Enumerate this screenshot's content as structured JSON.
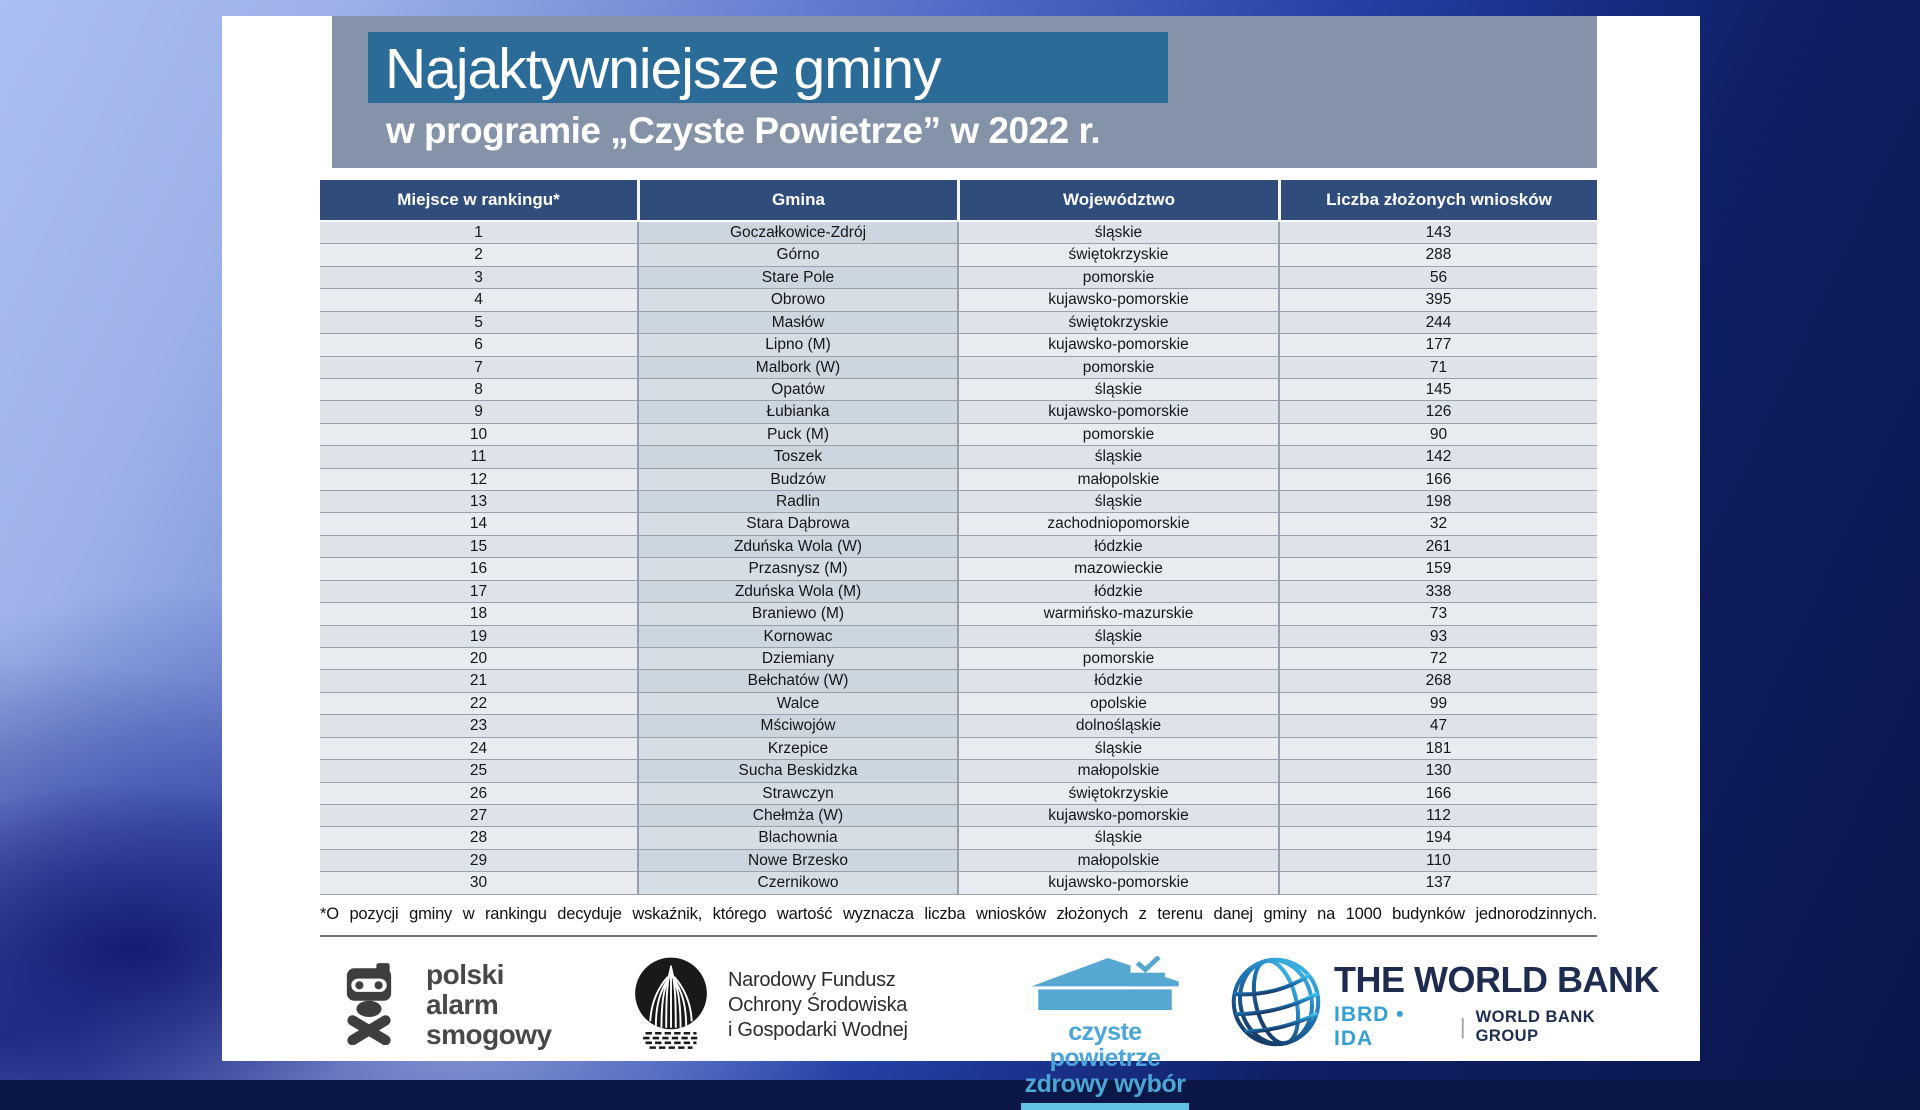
{
  "title": {
    "main": "Najaktywniejsze gminy",
    "subtitle": "w programie „Czyste Powietrze” w 2022 r."
  },
  "table": {
    "columns": [
      "Miejsce w rankingu*",
      "Gmina",
      "Województwo",
      "Liczba złożonych wniosków"
    ],
    "rows": [
      [
        "1",
        "Goczałkowice-Zdrój",
        "śląskie",
        "143"
      ],
      [
        "2",
        "Górno",
        "świętokrzyskie",
        "288"
      ],
      [
        "3",
        "Stare Pole",
        "pomorskie",
        "56"
      ],
      [
        "4",
        "Obrowo",
        "kujawsko-pomorskie",
        "395"
      ],
      [
        "5",
        "Masłów",
        "świętokrzyskie",
        "244"
      ],
      [
        "6",
        "Lipno (M)",
        "kujawsko-pomorskie",
        "177"
      ],
      [
        "7",
        "Malbork (W)",
        "pomorskie",
        "71"
      ],
      [
        "8",
        "Opatów",
        "śląskie",
        "145"
      ],
      [
        "9",
        "Łubianka",
        "kujawsko-pomorskie",
        "126"
      ],
      [
        "10",
        "Puck (M)",
        "pomorskie",
        "90"
      ],
      [
        "11",
        "Toszek",
        "śląskie",
        "142"
      ],
      [
        "12",
        "Budzów",
        "małopolskie",
        "166"
      ],
      [
        "13",
        "Radlin",
        "śląskie",
        "198"
      ],
      [
        "14",
        "Stara Dąbrowa",
        "zachodniopomorskie",
        "32"
      ],
      [
        "15",
        "Zduńska Wola (W)",
        "łódzkie",
        "261"
      ],
      [
        "16",
        "Przasnysz (M)",
        "mazowieckie",
        "159"
      ],
      [
        "17",
        "Zduńska Wola (M)",
        "łódzkie",
        "338"
      ],
      [
        "18",
        "Braniewo (M)",
        "warmińsko-mazurskie",
        "73"
      ],
      [
        "19",
        "Kornowac",
        "śląskie",
        "93"
      ],
      [
        "20",
        "Dziemiany",
        "pomorskie",
        "72"
      ],
      [
        "21",
        "Bełchatów (W)",
        "łódzkie",
        "268"
      ],
      [
        "22",
        "Walce",
        "opolskie",
        "99"
      ],
      [
        "23",
        "Mściwojów",
        "dolnośląskie",
        "47"
      ],
      [
        "24",
        "Krzepice",
        "śląskie",
        "181"
      ],
      [
        "25",
        "Sucha Beskidzka",
        "małopolskie",
        "130"
      ],
      [
        "26",
        "Strawczyn",
        "świętokrzyskie",
        "166"
      ],
      [
        "27",
        "Chełmża (W)",
        "kujawsko-pomorskie",
        "112"
      ],
      [
        "28",
        "Blachownia",
        "śląskie",
        "194"
      ],
      [
        "29",
        "Nowe Brzesko",
        "małopolskie",
        "110"
      ],
      [
        "30",
        "Czernikowo",
        "kujawsko-pomorskie",
        "137"
      ]
    ]
  },
  "footnote": "*O pozycji gminy w rankingu decyduje wskaźnik, którego wartość wyznacza liczba wniosków złożonych z terenu danej gminy na 1000 budynków jednorodzinnych.",
  "logos": {
    "pas": {
      "icon": "skull-gasmask",
      "lines": [
        "polski",
        "alarm",
        "smogowy"
      ]
    },
    "nfosigw": {
      "icon": "tree-circle",
      "lines": [
        "Narodowy Fundusz",
        "Ochrony Środowiska",
        "i Gospodarki Wodnej"
      ]
    },
    "czyste": {
      "icon": "house-check",
      "lines": [
        "czyste powietrze",
        "zdrowy wybór"
      ]
    },
    "worldbank": {
      "icon": "globe",
      "name": "THE WORLD BANK",
      "sub_left": "IBRD • IDA",
      "divider": "|",
      "sub_right": "WORLD BANK GROUP"
    }
  },
  "colors": {
    "banner-bg": "#8593a9",
    "title-box-bg": "#2b6b97",
    "header-bg": "#2f4c7a",
    "czyste-blue": "#4ba5d6",
    "wb-navy": "#1e2c50",
    "wb-cyan": "#35a1d3"
  }
}
